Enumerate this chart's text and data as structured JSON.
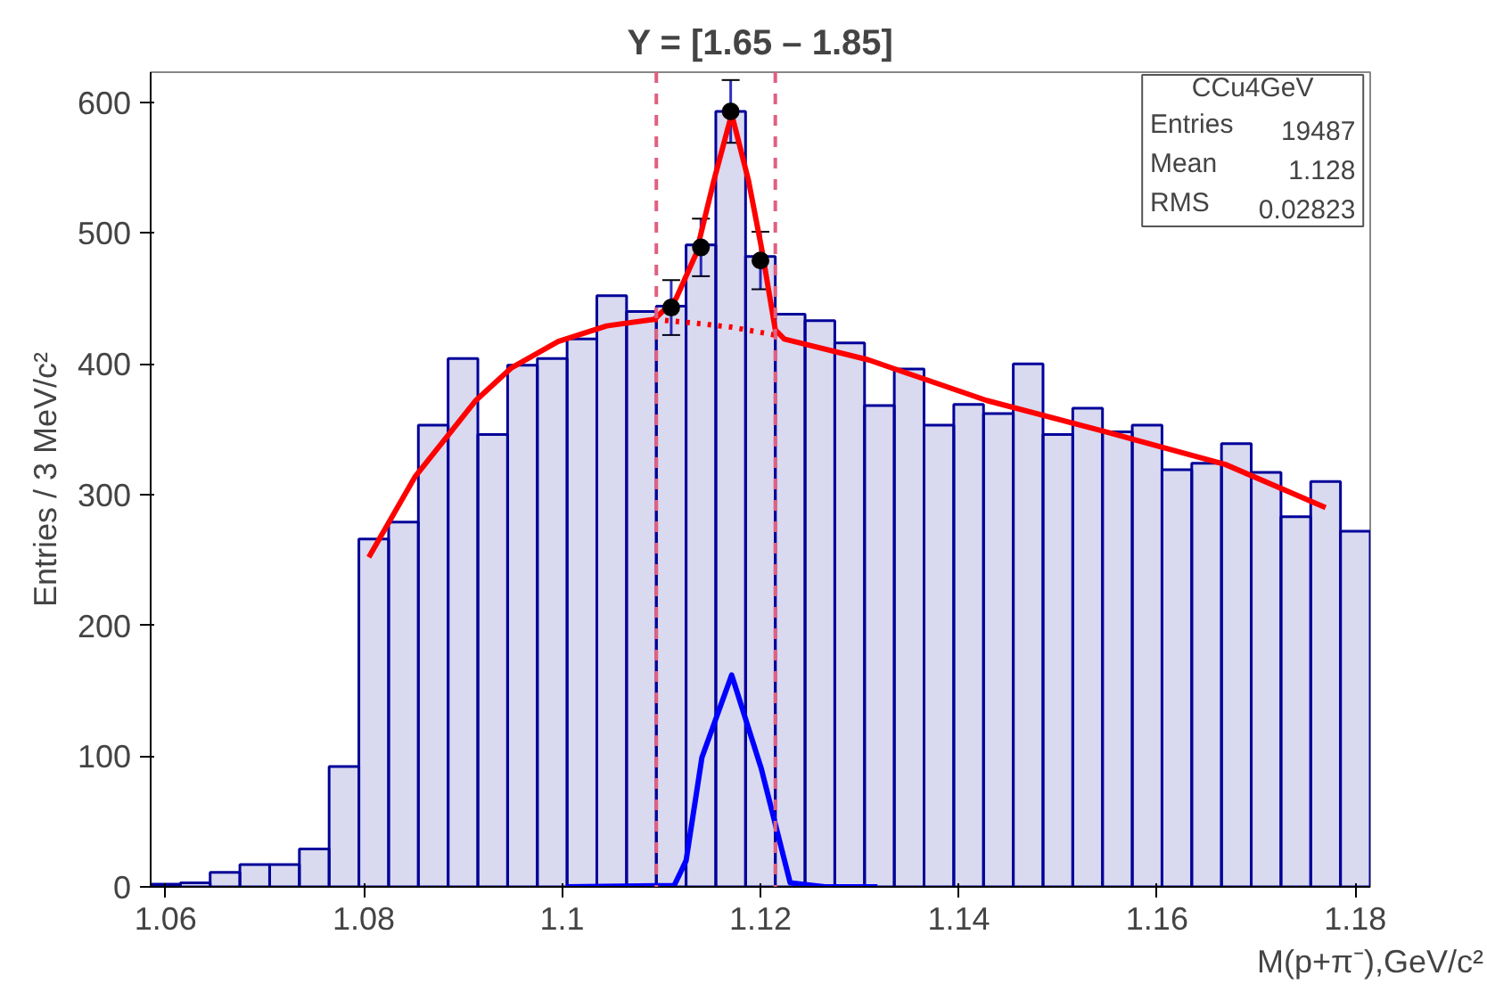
{
  "chart_data": {
    "type": "histogram",
    "title": "Y = [1.65 – 1.85]",
    "xlabel": "M(p+π⁻),GeV/c²",
    "ylabel": "Entries / 3 MeV/c²",
    "bins": [
      1.0585,
      1.0615,
      1.0645,
      1.0675,
      1.0705,
      1.0735,
      1.0765,
      1.0795,
      1.0825,
      1.0855,
      1.0885,
      1.0915,
      1.0945,
      1.0975,
      1.1005,
      1.1035,
      1.1065,
      1.1095,
      1.1125,
      1.1155,
      1.1185,
      1.1215,
      1.1245,
      1.1275,
      1.1305,
      1.1335,
      1.1365,
      1.1395,
      1.1425,
      1.1455,
      1.1485,
      1.1515,
      1.1545,
      1.1575,
      1.1605,
      1.1635,
      1.1665,
      1.1695,
      1.1725,
      1.1755,
      1.1785,
      1.1815
    ],
    "values": [
      2,
      3,
      11,
      17,
      17,
      29,
      92,
      266,
      279,
      353,
      404,
      346,
      399,
      404,
      419,
      452,
      440,
      444,
      491,
      593,
      482,
      438,
      433,
      416,
      368,
      396,
      353,
      369,
      362,
      400,
      346,
      366,
      348,
      353,
      319,
      324,
      339,
      317,
      283,
      310,
      272
    ],
    "color": "#000099",
    "series": [
      {
        "type": "line",
        "color": "#ff0000",
        "x": [
          1.0805,
          1.0852,
          1.0913,
          1.0949,
          1.0996,
          1.1045,
          1.1093,
          1.1115,
          1.1135,
          1.1153,
          1.1171,
          1.1188,
          1.1201,
          1.1215,
          1.1224,
          1.1309,
          1.1428,
          1.1548,
          1.1669,
          1.177
        ],
        "values": [
          252,
          314,
          372,
          397,
          417,
          429,
          434,
          450,
          484,
          540,
          591,
          540,
          489,
          426,
          419,
          403,
          372,
          348,
          323,
          290
        ]
      },
      {
        "type": "line",
        "color": "#ff0000",
        "line_style": "dotted",
        "x": [
          1.1093,
          1.1135,
          1.1171,
          1.1215
        ],
        "values": [
          434,
          431,
          428,
          422
        ]
      },
      {
        "type": "line",
        "color": "#0000ff",
        "x": [
          1.1004,
          1.1113,
          1.1125,
          1.1141,
          1.1171,
          1.1201,
          1.123,
          1.1265,
          1.1318
        ],
        "values": [
          0,
          1,
          20,
          99,
          162,
          90,
          3,
          0,
          0
        ]
      },
      {
        "type": "scatter",
        "color": "#000000",
        "x": [
          1.111,
          1.114,
          1.117,
          1.12
        ],
        "values": [
          443,
          489,
          593,
          479
        ],
        "errors": [
          21,
          22,
          24,
          22
        ]
      }
    ],
    "ref_lines": [
      {
        "axis": "x",
        "value": 1.1095,
        "color": "#e06080",
        "line_style": "dashed"
      },
      {
        "axis": "x",
        "value": 1.1215,
        "color": "#e06080",
        "line_style": "dashed"
      }
    ],
    "annotations": [
      "CCu4GeV",
      "Entries",
      "19487",
      "Mean",
      "1.128",
      "RMS",
      "0.02823"
    ],
    "xlim": [
      1.0585,
      1.1815
    ],
    "ylim": [
      0,
      623
    ],
    "xticks": [
      1.06,
      1.08,
      1.1,
      1.12,
      1.14,
      1.16,
      1.18
    ],
    "yticks": [
      0,
      100,
      200,
      300,
      400,
      500,
      600
    ],
    "grid": false
  }
}
